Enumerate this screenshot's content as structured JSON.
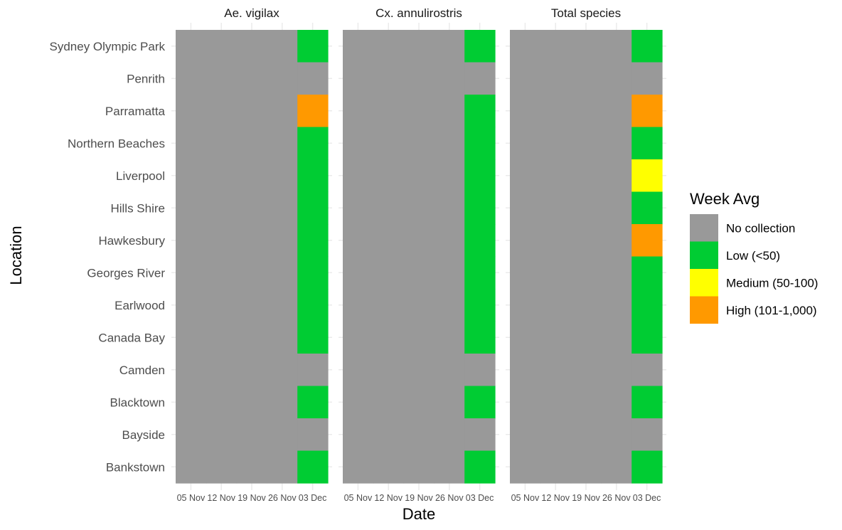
{
  "chart_data": {
    "type": "heatmap",
    "xlabel": "Date",
    "ylabel": "Location",
    "x_tick_labels": [
      "05 Nov",
      "12 Nov",
      "19 Nov",
      "26 Nov",
      "03 Dec"
    ],
    "locations": [
      "Sydney Olympic Park",
      "Penrith",
      "Parramatta",
      "Northern Beaches",
      "Liverpool",
      "Hills Shire",
      "Hawkesbury",
      "Georges River",
      "Earlwood",
      "Canada Bay",
      "Camden",
      "Blacktown",
      "Bayside",
      "Bankstown"
    ],
    "legend": {
      "title": "Week Avg",
      "position": "right",
      "items": [
        {
          "label": "No collection",
          "color": "#999999"
        },
        {
          "label": "Low (<50)",
          "color": "#00CC33"
        },
        {
          "label": "Medium (50-100)",
          "color": "#FFFF00"
        },
        {
          "label": "High (101-1,000)",
          "color": "#FF9900"
        }
      ]
    },
    "grid": true,
    "panels": [
      {
        "title": "Ae. vigilax",
        "values": [
          [
            "No collection",
            "No collection",
            "No collection",
            "No collection",
            "Low (<50)"
          ],
          [
            "No collection",
            "No collection",
            "No collection",
            "No collection",
            "No collection"
          ],
          [
            "No collection",
            "No collection",
            "No collection",
            "No collection",
            "High (101-1,000)"
          ],
          [
            "No collection",
            "No collection",
            "No collection",
            "No collection",
            "Low (<50)"
          ],
          [
            "No collection",
            "No collection",
            "No collection",
            "No collection",
            "Low (<50)"
          ],
          [
            "No collection",
            "No collection",
            "No collection",
            "No collection",
            "Low (<50)"
          ],
          [
            "No collection",
            "No collection",
            "No collection",
            "No collection",
            "Low (<50)"
          ],
          [
            "No collection",
            "No collection",
            "No collection",
            "No collection",
            "Low (<50)"
          ],
          [
            "No collection",
            "No collection",
            "No collection",
            "No collection",
            "Low (<50)"
          ],
          [
            "No collection",
            "No collection",
            "No collection",
            "No collection",
            "Low (<50)"
          ],
          [
            "No collection",
            "No collection",
            "No collection",
            "No collection",
            "No collection"
          ],
          [
            "No collection",
            "No collection",
            "No collection",
            "No collection",
            "Low (<50)"
          ],
          [
            "No collection",
            "No collection",
            "No collection",
            "No collection",
            "No collection"
          ],
          [
            "No collection",
            "No collection",
            "No collection",
            "No collection",
            "Low (<50)"
          ]
        ]
      },
      {
        "title": "Cx. annulirostris",
        "values": [
          [
            "No collection",
            "No collection",
            "No collection",
            "No collection",
            "Low (<50)"
          ],
          [
            "No collection",
            "No collection",
            "No collection",
            "No collection",
            "No collection"
          ],
          [
            "No collection",
            "No collection",
            "No collection",
            "No collection",
            "Low (<50)"
          ],
          [
            "No collection",
            "No collection",
            "No collection",
            "No collection",
            "Low (<50)"
          ],
          [
            "No collection",
            "No collection",
            "No collection",
            "No collection",
            "Low (<50)"
          ],
          [
            "No collection",
            "No collection",
            "No collection",
            "No collection",
            "Low (<50)"
          ],
          [
            "No collection",
            "No collection",
            "No collection",
            "No collection",
            "Low (<50)"
          ],
          [
            "No collection",
            "No collection",
            "No collection",
            "No collection",
            "Low (<50)"
          ],
          [
            "No collection",
            "No collection",
            "No collection",
            "No collection",
            "Low (<50)"
          ],
          [
            "No collection",
            "No collection",
            "No collection",
            "No collection",
            "Low (<50)"
          ],
          [
            "No collection",
            "No collection",
            "No collection",
            "No collection",
            "No collection"
          ],
          [
            "No collection",
            "No collection",
            "No collection",
            "No collection",
            "Low (<50)"
          ],
          [
            "No collection",
            "No collection",
            "No collection",
            "No collection",
            "No collection"
          ],
          [
            "No collection",
            "No collection",
            "No collection",
            "No collection",
            "Low (<50)"
          ]
        ]
      },
      {
        "title": "Total species",
        "values": [
          [
            "No collection",
            "No collection",
            "No collection",
            "No collection",
            "Low (<50)"
          ],
          [
            "No collection",
            "No collection",
            "No collection",
            "No collection",
            "No collection"
          ],
          [
            "No collection",
            "No collection",
            "No collection",
            "No collection",
            "High (101-1,000)"
          ],
          [
            "No collection",
            "No collection",
            "No collection",
            "No collection",
            "Low (<50)"
          ],
          [
            "No collection",
            "No collection",
            "No collection",
            "No collection",
            "Medium (50-100)"
          ],
          [
            "No collection",
            "No collection",
            "No collection",
            "No collection",
            "Low (<50)"
          ],
          [
            "No collection",
            "No collection",
            "No collection",
            "No collection",
            "High (101-1,000)"
          ],
          [
            "No collection",
            "No collection",
            "No collection",
            "No collection",
            "Low (<50)"
          ],
          [
            "No collection",
            "No collection",
            "No collection",
            "No collection",
            "Low (<50)"
          ],
          [
            "No collection",
            "No collection",
            "No collection",
            "No collection",
            "Low (<50)"
          ],
          [
            "No collection",
            "No collection",
            "No collection",
            "No collection",
            "No collection"
          ],
          [
            "No collection",
            "No collection",
            "No collection",
            "No collection",
            "Low (<50)"
          ],
          [
            "No collection",
            "No collection",
            "No collection",
            "No collection",
            "No collection"
          ],
          [
            "No collection",
            "No collection",
            "No collection",
            "No collection",
            "Low (<50)"
          ]
        ]
      }
    ]
  }
}
